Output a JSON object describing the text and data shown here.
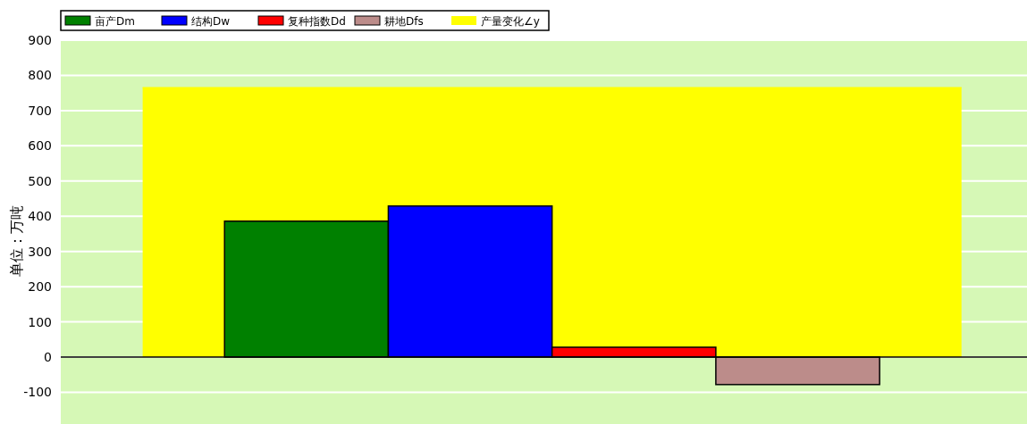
{
  "chart_data": {
    "type": "bar",
    "ylabel": "单位：万吨",
    "categories": [
      null,
      null,
      null,
      null,
      null,
      null
    ],
    "ylim": [
      -190,
      900
    ],
    "yticks": [
      -100,
      0,
      100,
      200,
      300,
      400,
      500,
      600,
      700,
      800,
      900
    ],
    "grid": "y",
    "legend": "top left",
    "series": [
      {
        "name": "产量变化∠y",
        "type": "area",
        "color": "#ffff00",
        "values": [
          765,
          765,
          765,
          765,
          765,
          765
        ]
      },
      {
        "name": "亩产Dm",
        "color": "#008000",
        "values": [
          null,
          386,
          null,
          null,
          null,
          null
        ]
      },
      {
        "name": "结构Dw",
        "color": "#0000ff",
        "values": [
          null,
          null,
          429,
          null,
          null,
          null
        ]
      },
      {
        "name": "复种指数Dd",
        "color": "#ff0000",
        "values": [
          null,
          null,
          null,
          28,
          null,
          null
        ]
      },
      {
        "name": "耕地Dfs",
        "color": "#bc8c8a",
        "values": [
          null,
          null,
          null,
          null,
          -78,
          null
        ]
      }
    ]
  }
}
